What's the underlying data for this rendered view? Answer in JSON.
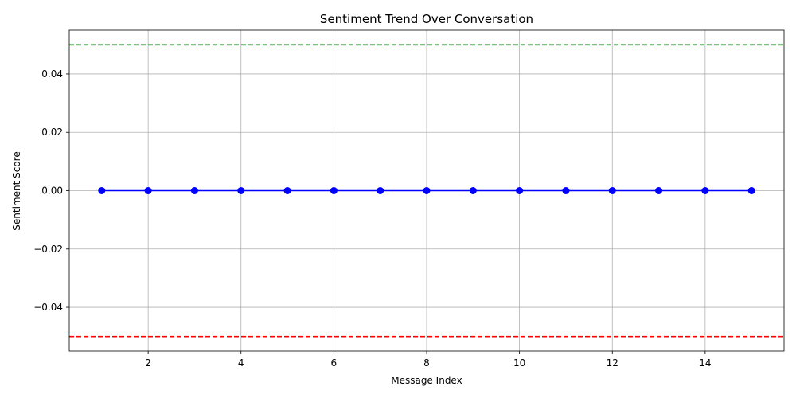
{
  "chart_data": {
    "type": "line",
    "title": "Sentiment Trend Over Conversation",
    "xlabel": "Message Index",
    "ylabel": "Sentiment Score",
    "xlim": [
      0.3,
      15.7
    ],
    "ylim": [
      -0.055,
      0.055
    ],
    "xticks": [
      2,
      4,
      6,
      8,
      10,
      12,
      14
    ],
    "yticks": [
      -0.04,
      -0.02,
      0.0,
      0.02,
      0.04
    ],
    "ytick_labels": [
      "−0.04",
      "−0.02",
      "0.00",
      "0.02",
      "0.04"
    ],
    "grid": true,
    "series": [
      {
        "color": "#0000ff",
        "marker": "circle",
        "x": [
          1,
          2,
          3,
          4,
          5,
          6,
          7,
          8,
          9,
          10,
          11,
          12,
          13,
          14,
          15
        ],
        "y": [
          0,
          0,
          0,
          0,
          0,
          0,
          0,
          0,
          0,
          0,
          0,
          0,
          0,
          0,
          0
        ]
      }
    ],
    "reference_lines": [
      {
        "y": 0.05,
        "color": "#008000",
        "style": "dashed"
      },
      {
        "y": -0.05,
        "color": "#ff0000",
        "style": "dashed"
      }
    ]
  }
}
